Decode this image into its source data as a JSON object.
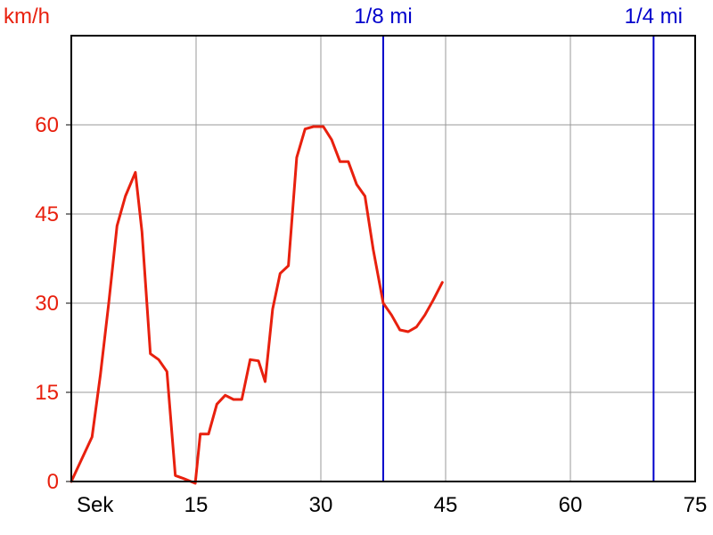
{
  "chart_data": {
    "type": "line",
    "ylabel": "km/h",
    "xlabel": "Sek",
    "xlim": [
      0,
      75
    ],
    "ylim": [
      0,
      75
    ],
    "x_ticks": [
      15,
      30,
      45,
      60,
      75
    ],
    "y_ticks": [
      0,
      15,
      30,
      45,
      60
    ],
    "grid": true,
    "series": [
      {
        "color": "#e8200e",
        "x": [
          0,
          2.5,
          3.5,
          4.5,
          5.5,
          6.5,
          7.7,
          8.5,
          9.5,
          10.5,
          11.5,
          12.5,
          13.5,
          14.9,
          15.5,
          16.5,
          17.5,
          18.5,
          19.5,
          20.5,
          21.5,
          22.5,
          23.3,
          24.2,
          25.1,
          26.1,
          27.1,
          28.1,
          29.1,
          30.3,
          31.3,
          32.3,
          33.3,
          34.3,
          35.3,
          36.3,
          37.5,
          38.5,
          39.5,
          40.5,
          41.5,
          42.5,
          43.5,
          44.6
        ],
        "y": [
          0,
          7.5,
          18,
          30,
          43,
          48,
          52,
          42,
          21.5,
          20.5,
          18.5,
          1,
          0.5,
          -0.3,
          8,
          8,
          13,
          14.5,
          13.8,
          13.8,
          20.5,
          20.3,
          16.8,
          29,
          35,
          36.3,
          54.5,
          59.3,
          59.7,
          59.7,
          57.5,
          53.8,
          53.8,
          50,
          48,
          39,
          30,
          28,
          25.5,
          25.2,
          26,
          28,
          30.5,
          33.5
        ]
      }
    ],
    "markers": [
      {
        "label": "1/8 mi",
        "x": 37.5,
        "color": "#0000cc"
      },
      {
        "label": "1/4 mi",
        "x": 70,
        "color": "#0000cc"
      }
    ],
    "colors": {
      "ytext": "#e8200e",
      "xtext": "#000000",
      "grid": "#999999",
      "axis": "#000000",
      "marker": "#0000cc"
    }
  }
}
